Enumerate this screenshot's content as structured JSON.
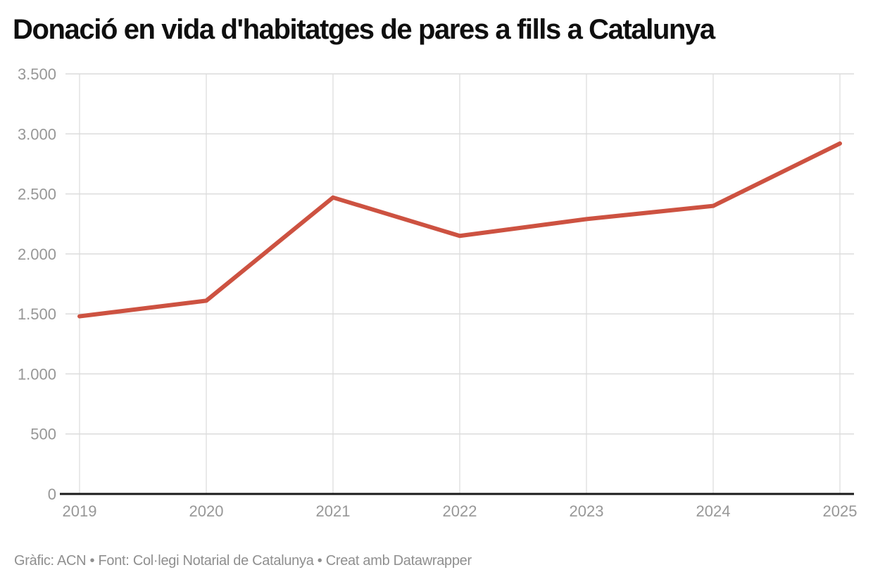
{
  "title": "Donació en vida d'habitatges de pares a fills a Catalunya",
  "attribution": "Gràfic: ACN • Font: Col·legi Notarial de Catalunya • Creat amb Datawrapper",
  "colors": {
    "line": "#cd5241",
    "grid_h": "#dcdcdc",
    "grid_v": "#e2e2e2",
    "axis": "#1a1a1a",
    "tick_label": "#979797",
    "title": "#0f0f0f",
    "attribution_text": "#8f8f8f"
  },
  "chart_data": {
    "type": "line",
    "title": "Donació en vida d'habitatges de pares a fills a Catalunya",
    "x": [
      2019,
      2020,
      2021,
      2022,
      2023,
      2024,
      2025
    ],
    "values": [
      1480,
      1610,
      2470,
      2150,
      2290,
      2400,
      2920
    ],
    "xlabel": "",
    "ylabel": "",
    "ylim": [
      0,
      3500
    ],
    "yticks": [
      0,
      500,
      1000,
      1500,
      2000,
      2500,
      3000,
      3500
    ],
    "ytick_labels": [
      "0",
      "500",
      "1.000",
      "1.500",
      "2.000",
      "2.500",
      "3.000",
      "3.500"
    ],
    "xtick_labels": [
      "2019",
      "2020",
      "2021",
      "2022",
      "2023",
      "2024",
      "2025"
    ],
    "grid": true,
    "legend": false,
    "line_width": 6
  }
}
